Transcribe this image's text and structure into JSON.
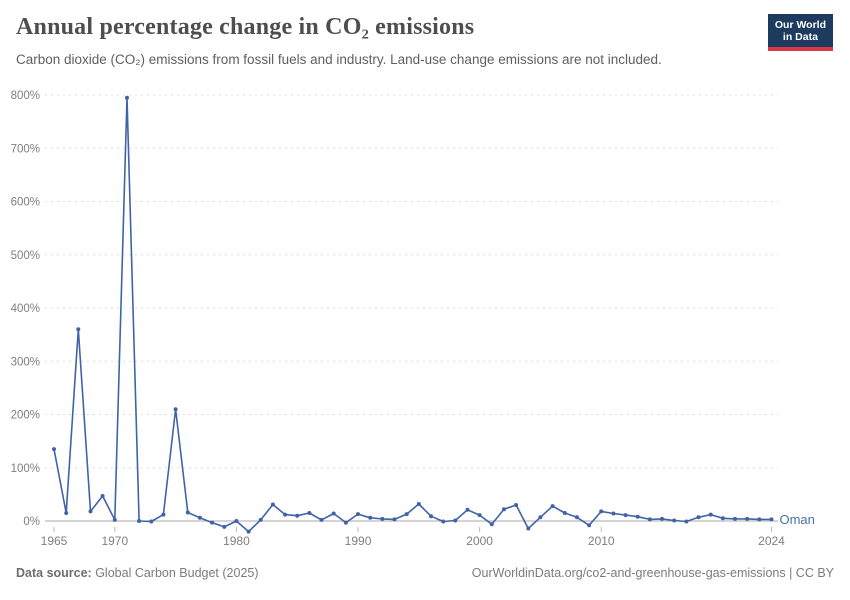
{
  "header": {
    "title": "Annual percentage change in CO₂ emissions",
    "subtitle": "Carbon dioxide (CO₂) emissions from fossil fuels and industry. Land-use change emissions are not included.",
    "logo": {
      "line1": "Our World",
      "line2": "in Data"
    }
  },
  "chart_data": {
    "type": "line",
    "title": "Annual percentage change in CO₂ emissions",
    "entity": "Oman",
    "unit": "%",
    "x": [
      1965,
      1966,
      1967,
      1968,
      1969,
      1970,
      1971,
      1972,
      1973,
      1974,
      1975,
      1976,
      1977,
      1978,
      1979,
      1980,
      1981,
      1982,
      1983,
      1984,
      1985,
      1986,
      1987,
      1988,
      1989,
      1990,
      1991,
      1992,
      1993,
      1994,
      1995,
      1996,
      1997,
      1998,
      1999,
      2000,
      2001,
      2002,
      2003,
      2004,
      2005,
      2006,
      2007,
      2008,
      2009,
      2010,
      2011,
      2012,
      2013,
      2014,
      2015,
      2016,
      2017,
      2018,
      2019,
      2020,
      2021,
      2022,
      2023,
      2024
    ],
    "values": [
      135,
      15,
      360,
      18,
      47,
      2,
      795,
      0,
      -1,
      12,
      210,
      16,
      6,
      -3,
      -11,
      0,
      -20,
      2,
      31,
      12,
      10,
      15,
      2,
      14,
      -3,
      13,
      6,
      4,
      3,
      13,
      32,
      9,
      -1,
      1,
      21,
      11,
      -6,
      22,
      30,
      -14,
      7,
      28,
      15,
      7,
      -8,
      18,
      14,
      11,
      8,
      3,
      4,
      1,
      -1,
      7,
      12,
      5,
      4,
      4,
      3,
      3
    ],
    "xticks": [
      1965,
      1970,
      1980,
      1990,
      2000,
      2010,
      2024
    ],
    "yticks": [
      0,
      100,
      200,
      300,
      400,
      500,
      600,
      700,
      800
    ],
    "ylim": [
      -25,
      800
    ],
    "grid": true,
    "legend_position": "end-of-line-label",
    "line_color": "#4063a6",
    "marker_color": "#4063a6",
    "entity_label_color": "#4a6fae",
    "grid_color": "#dcdcdc",
    "zero_line_color": "#a8a8a8",
    "axis_label_color": "#7f7f7f"
  },
  "footer": {
    "source_label": "Data source:",
    "source_value": " Global Carbon Budget (2025)",
    "license": "OurWorldinData.org/co2-and-greenhouse-gas-emissions | CC BY"
  }
}
